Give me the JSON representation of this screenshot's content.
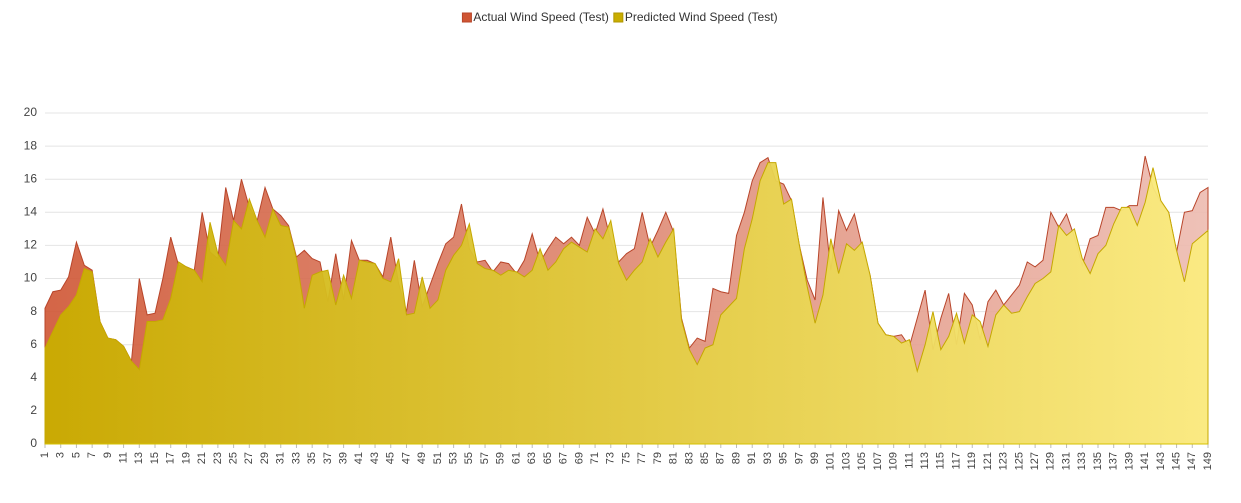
{
  "chart_data": {
    "type": "area",
    "x": [
      1,
      2,
      3,
      4,
      5,
      6,
      7,
      8,
      9,
      10,
      11,
      12,
      13,
      14,
      15,
      16,
      17,
      18,
      19,
      20,
      21,
      22,
      23,
      24,
      25,
      26,
      27,
      28,
      29,
      30,
      31,
      32,
      33,
      34,
      35,
      36,
      37,
      38,
      39,
      40,
      41,
      42,
      43,
      44,
      45,
      46,
      47,
      48,
      49,
      50,
      51,
      52,
      53,
      54,
      55,
      56,
      57,
      58,
      59,
      60,
      61,
      62,
      63,
      64,
      65,
      66,
      67,
      68,
      69,
      70,
      71,
      72,
      73,
      74,
      75,
      76,
      77,
      78,
      79,
      80,
      81,
      82,
      83,
      84,
      85,
      86,
      87,
      88,
      89,
      90,
      91,
      92,
      93,
      94,
      95,
      96,
      97,
      98,
      99,
      100,
      101,
      102,
      103,
      104,
      105,
      106,
      107,
      108,
      109,
      110,
      111,
      112,
      113,
      114,
      115,
      116,
      117,
      118,
      119,
      120,
      121,
      122,
      123,
      124,
      125,
      126,
      127,
      128,
      129,
      130,
      131,
      132,
      133,
      134,
      135,
      136,
      137,
      138,
      139,
      140,
      141,
      142,
      143,
      144,
      145,
      146,
      147,
      148,
      149
    ],
    "xlim": [
      1,
      149
    ],
    "xticks": [
      1,
      3,
      5,
      7,
      9,
      11,
      13,
      15,
      17,
      19,
      21,
      23,
      25,
      27,
      29,
      31,
      33,
      35,
      37,
      39,
      41,
      43,
      45,
      47,
      49,
      51,
      53,
      55,
      57,
      59,
      61,
      63,
      65,
      67,
      69,
      71,
      73,
      75,
      77,
      79,
      81,
      83,
      85,
      87,
      89,
      91,
      93,
      95,
      97,
      99,
      101,
      103,
      105,
      107,
      109,
      111,
      113,
      115,
      117,
      119,
      121,
      123,
      125,
      127,
      129,
      131,
      133,
      135,
      137,
      139,
      141,
      143,
      145,
      147,
      149
    ],
    "ylim": [
      0,
      20
    ],
    "yticks": [
      0,
      2,
      4,
      6,
      8,
      10,
      12,
      14,
      16,
      18,
      20
    ],
    "grid": true,
    "legend": "top",
    "series": [
      {
        "name": "Actual Wind Speed (Test)",
        "color": "#cf5533",
        "color_end": "#edbbb0",
        "values": [
          8.2,
          9.2,
          9.3,
          10.1,
          12.2,
          10.8,
          10.5,
          7.4,
          6.4,
          6.3,
          5.9,
          5.0,
          10.0,
          7.8,
          7.9,
          10.0,
          12.5,
          10.8,
          10.7,
          10.5,
          14.0,
          11.6,
          11.2,
          15.5,
          13.5,
          16.0,
          14.3,
          13.5,
          15.5,
          14.2,
          13.8,
          13.2,
          11.3,
          11.7,
          11.2,
          11.0,
          8.6,
          11.5,
          8.7,
          12.3,
          11.1,
          11.1,
          10.9,
          10.1,
          12.5,
          9.7,
          8.0,
          11.1,
          8.3,
          9.6,
          10.9,
          12.1,
          12.5,
          14.5,
          11.8,
          11.0,
          11.1,
          10.4,
          11.0,
          10.9,
          10.3,
          11.1,
          12.7,
          11.0,
          11.8,
          12.5,
          12.1,
          12.5,
          12.0,
          13.7,
          12.7,
          14.2,
          12.3,
          11.0,
          11.5,
          11.8,
          14.0,
          11.9,
          12.9,
          14.0,
          12.8,
          7.6,
          5.8,
          6.4,
          6.2,
          9.4,
          9.2,
          9.1,
          12.6,
          14.0,
          15.9,
          17.0,
          17.3,
          15.9,
          15.7,
          14.7,
          12.0,
          9.9,
          8.7,
          14.9,
          10.5,
          14.1,
          12.9,
          13.9,
          11.9,
          10.2,
          7.3,
          6.6,
          6.5,
          6.6,
          5.9,
          7.6,
          9.3,
          5.7,
          7.6,
          9.1,
          6.0,
          9.1,
          8.4,
          6.3,
          8.6,
          9.3,
          8.4,
          9.0,
          9.6,
          11.0,
          10.7,
          11.1,
          14.0,
          13.1,
          13.9,
          12.5,
          10.8,
          12.4,
          12.6,
          14.3,
          14.3,
          14.1,
          14.4,
          14.4,
          17.4,
          15.5,
          14.6,
          14.0,
          11.6,
          14.0,
          14.1,
          15.2,
          15.5
        ]
      },
      {
        "name": "Predicted Wind Speed (Test)",
        "color": "#c9ad00",
        "color_end": "#fbec80",
        "values": [
          5.8,
          6.8,
          7.8,
          8.3,
          9.0,
          10.6,
          10.4,
          7.4,
          6.4,
          6.3,
          5.9,
          5.0,
          4.5,
          7.4,
          7.4,
          7.5,
          8.8,
          11.0,
          10.7,
          10.5,
          9.8,
          13.4,
          11.5,
          10.8,
          13.5,
          13.0,
          14.8,
          13.5,
          12.5,
          14.2,
          13.2,
          13.1,
          11.2,
          8.2,
          10.2,
          10.4,
          10.5,
          8.4,
          10.2,
          8.8,
          11.1,
          11.0,
          10.9,
          10.0,
          9.8,
          11.2,
          7.8,
          7.9,
          10.1,
          8.2,
          8.7,
          10.5,
          11.4,
          12.0,
          13.3,
          10.9,
          10.6,
          10.5,
          10.2,
          10.5,
          10.4,
          10.1,
          10.5,
          11.8,
          10.5,
          11.0,
          11.8,
          12.2,
          11.9,
          11.6,
          13.0,
          12.4,
          13.5,
          10.9,
          9.9,
          10.5,
          11.0,
          12.4,
          11.3,
          12.2,
          13.0,
          7.5,
          5.7,
          4.8,
          5.8,
          6.0,
          7.8,
          8.3,
          8.8,
          11.8,
          13.6,
          15.9,
          17.0,
          17.0,
          14.5,
          14.8,
          12.0,
          9.5,
          7.3,
          9.0,
          12.4,
          10.3,
          12.1,
          11.7,
          12.2,
          10.2,
          7.3,
          6.6,
          6.5,
          6.1,
          6.3,
          4.4,
          6.0,
          8.0,
          5.7,
          6.5,
          7.9,
          6.1,
          7.8,
          7.4,
          5.9,
          7.8,
          8.4,
          7.9,
          8.0,
          8.9,
          9.7,
          10.0,
          10.4,
          13.2,
          12.6,
          13.0,
          11.2,
          10.3,
          11.5,
          12.0,
          13.3,
          14.3,
          14.3,
          13.2,
          14.6,
          16.7,
          14.7,
          14.0,
          11.7,
          9.8,
          12.1,
          12.5,
          12.9
        ]
      }
    ]
  }
}
